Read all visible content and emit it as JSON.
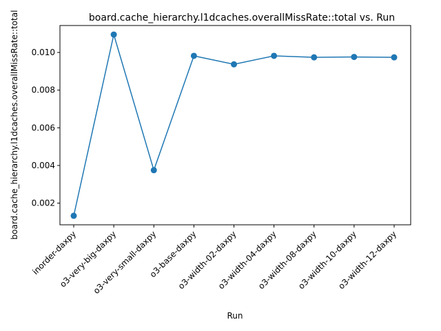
{
  "chart_data": {
    "type": "line",
    "title": "board.cache_hierarchy.l1dcaches.overallMissRate::total vs. Run",
    "xlabel": "Run",
    "ylabel": "board.cache_hierarchy.l1dcaches.overallMissRate::total",
    "categories": [
      "inorder-daxpy",
      "o3-very-big-daxpy",
      "o3-very-small-daxpy",
      "o3-base-daxpy",
      "o3-width-02-daxpy",
      "o3-width-04-daxpy",
      "o3-width-08-daxpy",
      "o3-width-10-daxpy",
      "o3-width-12-daxpy"
    ],
    "values": [
      0.00133,
      0.01095,
      0.00375,
      0.00982,
      0.00937,
      0.00982,
      0.00974,
      0.00976,
      0.00974
    ],
    "yticks": [
      0.002,
      0.004,
      0.006,
      0.008,
      0.01
    ],
    "ytick_labels": [
      "0.002",
      "0.004",
      "0.006",
      "0.008",
      "0.010"
    ],
    "ylim": [
      0.00085,
      0.01143
    ],
    "grid": false,
    "line_color": "#1f77b4",
    "marker": "circle"
  }
}
